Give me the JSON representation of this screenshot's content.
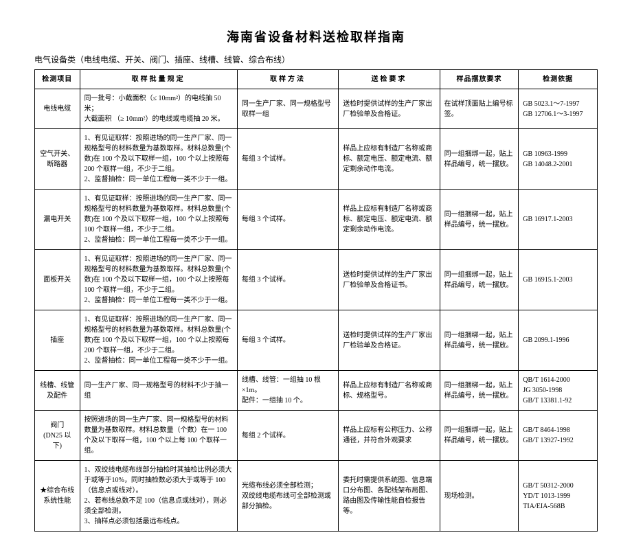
{
  "title": "海南省设备材料送检取样指南",
  "subtitle": "电气设备类（电线电缆、开关、阀门、插座、线槽、线管、综合布线）",
  "headers": {
    "c1": "检测项目",
    "c2": "取样批量规定",
    "c3": "取样方法",
    "c4": "送检要求",
    "c5": "样品摆放要求",
    "c6": "检测依据"
  },
  "rows": [
    {
      "item": "电线电缆",
      "batch": "同一批号：小截面积（≤ 10mm²）的电线抽 50 米；\n大截面积   （≥ 10mm²）的电线或电缆抽 20 米。",
      "method": "同一生产厂家、同一规格型号取样一组",
      "req": "送检时提供试样的生产厂家出厂检验单及合格证。",
      "place": "在试样顶面贴上编号标签。",
      "basis": "GB 5023.1～7-1997\nGB 12706.1～3-1997"
    },
    {
      "item": "空气开关、\n断路器",
      "batch": "1、有见证取样：按照进场的同一生产厂家、同一规格型号的材料数量为基数取样。材料总数量(个数)在 100 个及以下取样一组，100 个以上按照每 200 个取样一组，不少于二组。\n2、监督抽检：同一单位工程每一类不少于一组。",
      "method": "每组 3 个试样。",
      "req": "样品上应标有制造厂名称或商标、额定电压、额定电流、额定剩余动作电流。",
      "place": "同一组捆绑一起，贴上样品编号，统一摆放。",
      "basis": "GB 10963-1999\nGB 14048.2-2001"
    },
    {
      "item": "漏电开关",
      "batch": "1、有见证取样：按照进场的同一生产厂家、同一规格型号的材料数量为基数取样。材料总数量(个数)在 100 个及以下取样一组，100 个以上按照每 100 个取样一组，不少于二组。\n2、监督抽检：同一单位工程每一类不少于一组。",
      "method": "每组 3 个试样。",
      "req": "样品上应标有制造厂名称或商标、额定电压、额定电流、额定剩余动作电流。",
      "place": "同一组捆绑一起，贴上样品编号，统一摆放。",
      "basis": "GB 16917.1-2003"
    },
    {
      "item": "面板开关",
      "batch": "1、有见证取样：按照进场的同一生产厂家、同一规格型号的材料数量为基数取样。材料总数量(个数)在 100 个及以下取样一组，100 个以上按照每 100 个取样一组，不少于二组。\n2、监督抽检：同一单位工程每一类不少于一组。",
      "method": "每组 3 个试样。",
      "req": "送检时提供试样的生产厂家出厂检验单及合格证书。",
      "place": "同一组捆绑一起，贴上样品编号，统一摆放。",
      "basis": "GB 16915.1-2003"
    },
    {
      "item": "插座",
      "batch": "1、有见证取样：按照进场的同一生产厂家、同一规格型号的材料数量为基数取样。材料总数量(个数)在 100 个及以下取样一组，100 个以上按照每 200 个取样一组，不少于二组。\n2、监督抽检：同一单位工程每一类不少于一组。",
      "method": "每组 3 个试样。",
      "req": "送检时提供试样的生产厂家出厂检验单及合格证。",
      "place": "同一组捆绑一起，贴上样品编号，统一摆放。",
      "basis": "GB 2099.1-1996"
    },
    {
      "item": "线槽、线管\n及配件",
      "batch": "同一生产厂家、同一规格型号的材料不少于抽一组",
      "method": "线槽、线管：一组抽 10 根×1m。\n配件：一组抽 10 个。",
      "req": "样品上应标有制造厂名称或商标、规格型号。",
      "place": "同一组捆绑一起，贴上样品编号，统一摆放。",
      "basis": "QB/T 1614-2000\nJG 3050-1998\nGB/T 13381.1-92"
    },
    {
      "item": "阀门\n(DN25 以下)",
      "batch": "按照进场的同一生产厂家、同一规格型号的材料数量为基数取样。材料总数量（个数）在一 100 个及以下取样一组，100 个以上每 100 个取样一组。",
      "method": "每组 2 个试样。",
      "req": "样品上应标有公称压力、公称通径，并符合外观要求",
      "place": "同一组捆绑一起，贴上样品编号，统一摆放。",
      "basis": "GB/T 8464-1998\nGB/T 13927-1992"
    },
    {
      "item": "★综合布线\n系统性能",
      "batch": "1、双绞线电缆布线部分抽检时其抽检比例必须大于或等于10%，同时抽检数必须大于或等于 100（信息点或线对）。\n2、若布线总数不足 100（信息点或线对），则必须全部检测。\n3、抽样点必须包括最远布线点。",
      "method": "光缆布线必须全部检测；\n双绞线电缆布线可全部检测或部分抽检。",
      "req": "委托时需提供系统图、信息端口分布图、各配线架布局图、路由图及传输性能自检报告等。",
      "place": "现场检测。",
      "basis": "GB/T 50312-2000\nYD/T 1013-1999\nTIA/EIA-568B"
    }
  ]
}
